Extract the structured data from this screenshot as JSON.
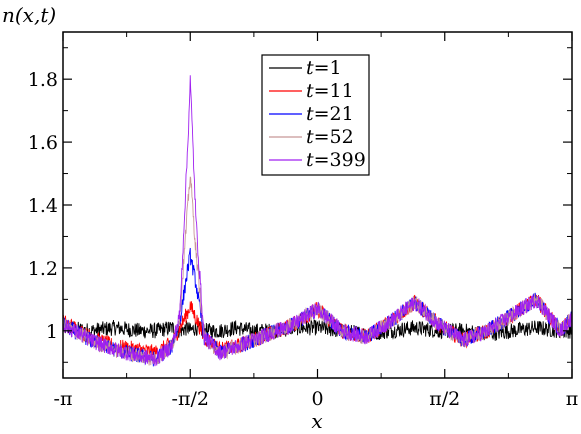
{
  "chart_data": {
    "type": "line",
    "title": "",
    "xlabel": "x",
    "ylabel": "n(x,t)",
    "xlim": [
      -3.14159,
      3.14159
    ],
    "ylim": [
      0.85,
      1.95
    ],
    "x_ticks": [
      {
        "value": -3.14159,
        "label": "-π"
      },
      {
        "value": -1.5708,
        "label": "-π/2"
      },
      {
        "value": 0,
        "label": "0"
      },
      {
        "value": 1.5708,
        "label": "π/2"
      },
      {
        "value": 3.14159,
        "label": "π"
      }
    ],
    "y_ticks": [
      {
        "value": 1.0,
        "label": "1"
      },
      {
        "value": 1.2,
        "label": "1.2"
      },
      {
        "value": 1.4,
        "label": "1.4"
      },
      {
        "value": 1.6,
        "label": "1.6"
      },
      {
        "value": 1.8,
        "label": "1.8"
      }
    ],
    "grid": false,
    "legend_position": "top-center",
    "series": [
      {
        "name": "t=1",
        "t": "1",
        "color": "#000000",
        "x": [
          -3.14,
          -2.8,
          -2.5,
          -2.2,
          -2.0,
          -1.8,
          -1.7,
          -1.6,
          -1.571,
          -1.5,
          -1.4,
          -1.2,
          -1.0,
          -0.8,
          -0.5,
          -0.3,
          0.0,
          0.3,
          0.6,
          0.9,
          1.2,
          1.5,
          1.8,
          2.1,
          2.4,
          2.7,
          3.0,
          3.14
        ],
        "y": [
          1.01,
          1.0,
          1.01,
          1.0,
          1.0,
          1.01,
          1.0,
          1.01,
          1.0,
          1.01,
          1.0,
          1.0,
          1.01,
          1.0,
          1.0,
          1.01,
          1.01,
          1.0,
          0.99,
          1.0,
          1.01,
          1.0,
          1.0,
          0.99,
          1.0,
          1.01,
          1.0,
          1.0
        ],
        "noise": 0.025
      },
      {
        "name": "t=11",
        "t": "11",
        "color": "#ff0000",
        "x": [
          -3.14,
          -2.8,
          -2.5,
          -2.2,
          -2.0,
          -1.8,
          -1.7,
          -1.6,
          -1.571,
          -1.5,
          -1.4,
          -1.2,
          -1.0,
          -0.8,
          -0.5,
          -0.3,
          0.0,
          0.3,
          0.6,
          0.9,
          1.2,
          1.5,
          1.8,
          2.1,
          2.4,
          2.7,
          3.0,
          3.14
        ],
        "y": [
          1.03,
          0.98,
          0.95,
          0.94,
          0.93,
          0.96,
          1.01,
          1.06,
          1.08,
          1.04,
          0.98,
          0.94,
          0.95,
          0.97,
          1.0,
          1.02,
          1.07,
          1.0,
          0.98,
          1.03,
          1.09,
          1.02,
          0.97,
          1.0,
          1.05,
          1.1,
          1.0,
          1.04
        ],
        "noise": 0.025
      },
      {
        "name": "t=21",
        "t": "21",
        "color": "#0000ff",
        "x": [
          -3.14,
          -2.8,
          -2.5,
          -2.2,
          -2.0,
          -1.8,
          -1.7,
          -1.6,
          -1.571,
          -1.5,
          -1.4,
          -1.2,
          -1.0,
          -0.8,
          -0.5,
          -0.3,
          0.0,
          0.3,
          0.6,
          0.9,
          1.2,
          1.5,
          1.8,
          2.1,
          2.4,
          2.7,
          3.0,
          3.14
        ],
        "y": [
          1.02,
          0.97,
          0.94,
          0.92,
          0.91,
          0.95,
          1.03,
          1.2,
          1.24,
          1.15,
          0.98,
          0.93,
          0.95,
          0.97,
          1.0,
          1.02,
          1.07,
          1.0,
          0.98,
          1.03,
          1.09,
          1.02,
          0.97,
          1.0,
          1.05,
          1.1,
          1.0,
          1.04
        ],
        "noise": 0.025
      },
      {
        "name": "t=52",
        "t": "52",
        "color": "#c89696",
        "x": [
          -3.14,
          -2.8,
          -2.5,
          -2.2,
          -2.0,
          -1.8,
          -1.7,
          -1.6,
          -1.571,
          -1.5,
          -1.4,
          -1.2,
          -1.0,
          -0.8,
          -0.5,
          -0.3,
          0.0,
          0.3,
          0.6,
          0.9,
          1.2,
          1.5,
          1.8,
          2.1,
          2.4,
          2.7,
          3.0,
          3.14
        ],
        "y": [
          1.02,
          0.97,
          0.94,
          0.92,
          0.91,
          0.95,
          1.05,
          1.4,
          1.5,
          1.25,
          0.98,
          0.93,
          0.95,
          0.97,
          1.0,
          1.02,
          1.07,
          1.0,
          0.98,
          1.03,
          1.09,
          1.02,
          0.97,
          1.0,
          1.05,
          1.1,
          1.0,
          1.04
        ],
        "noise": 0.025
      },
      {
        "name": "t=399",
        "t": "399",
        "color": "#a020f0",
        "x": [
          -3.14,
          -2.8,
          -2.5,
          -2.2,
          -2.0,
          -1.8,
          -1.7,
          -1.6,
          -1.571,
          -1.5,
          -1.4,
          -1.2,
          -1.0,
          -0.8,
          -0.5,
          -0.3,
          0.0,
          0.3,
          0.6,
          0.9,
          1.2,
          1.5,
          1.8,
          2.1,
          2.4,
          2.7,
          3.0,
          3.14
        ],
        "y": [
          1.02,
          0.97,
          0.94,
          0.92,
          0.91,
          0.95,
          1.05,
          1.6,
          1.8,
          1.35,
          0.98,
          0.93,
          0.95,
          0.97,
          1.0,
          1.02,
          1.07,
          1.0,
          0.98,
          1.03,
          1.09,
          1.02,
          0.97,
          1.0,
          1.05,
          1.1,
          1.0,
          1.04
        ],
        "noise": 0.025
      }
    ]
  }
}
